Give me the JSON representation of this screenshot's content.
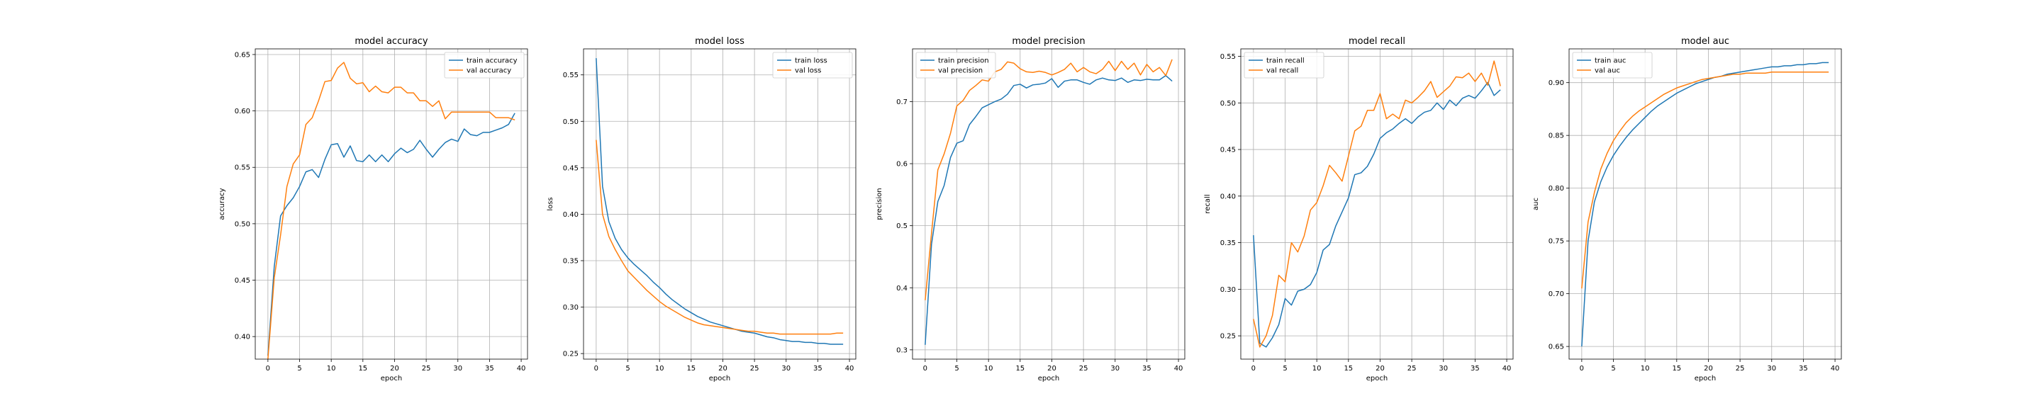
{
  "colors": {
    "train": "#1f77b4",
    "val": "#ff7f0e",
    "grid": "#b0b0b0"
  },
  "chart_data": [
    {
      "type": "line",
      "title": "model accuracy",
      "xlabel": "epoch",
      "ylabel": "accuracy",
      "xlim": [
        -2,
        41
      ],
      "ylim": [
        0.38,
        0.655
      ],
      "xticks": [
        0,
        5,
        10,
        15,
        20,
        25,
        30,
        35,
        40
      ],
      "yticks": [
        0.4,
        0.45,
        0.5,
        0.55,
        0.6,
        0.65
      ],
      "tick_decimals": 2,
      "grid": true,
      "legend": "upper-right",
      "series": [
        {
          "name": "train accuracy",
          "color_key": "train",
          "values": [
            0.383,
            0.462,
            0.507,
            0.516,
            0.523,
            0.533,
            0.546,
            0.548,
            0.541,
            0.557,
            0.57,
            0.571,
            0.559,
            0.569,
            0.556,
            0.555,
            0.561,
            0.555,
            0.561,
            0.555,
            0.562,
            0.567,
            0.563,
            0.566,
            0.574,
            0.566,
            0.559,
            0.566,
            0.572,
            0.575,
            0.573,
            0.584,
            0.579,
            0.578,
            0.581,
            0.581,
            0.583,
            0.585,
            0.588,
            0.598
          ]
        },
        {
          "name": "val accuracy",
          "color_key": "val",
          "values": [
            0.38,
            0.452,
            0.49,
            0.533,
            0.553,
            0.561,
            0.588,
            0.594,
            0.609,
            0.626,
            0.627,
            0.638,
            0.643,
            0.629,
            0.624,
            0.625,
            0.617,
            0.622,
            0.617,
            0.616,
            0.621,
            0.621,
            0.616,
            0.616,
            0.609,
            0.609,
            0.604,
            0.609,
            0.593,
            0.599,
            0.599,
            0.599,
            0.599,
            0.599,
            0.599,
            0.599,
            0.594,
            0.594,
            0.594,
            0.592
          ]
        }
      ]
    },
    {
      "type": "line",
      "title": "model loss",
      "xlabel": "epoch",
      "ylabel": "loss",
      "xlim": [
        -2,
        41
      ],
      "ylim": [
        0.244,
        0.578
      ],
      "xticks": [
        0,
        5,
        10,
        15,
        20,
        25,
        30,
        35,
        40
      ],
      "yticks": [
        0.25,
        0.3,
        0.35,
        0.4,
        0.45,
        0.5,
        0.55
      ],
      "tick_decimals": 2,
      "grid": true,
      "legend": "upper-right",
      "series": [
        {
          "name": "train loss",
          "color_key": "train",
          "values": [
            0.568,
            0.43,
            0.392,
            0.374,
            0.362,
            0.353,
            0.346,
            0.34,
            0.334,
            0.327,
            0.321,
            0.314,
            0.308,
            0.303,
            0.298,
            0.294,
            0.29,
            0.287,
            0.284,
            0.282,
            0.28,
            0.278,
            0.276,
            0.274,
            0.273,
            0.272,
            0.27,
            0.268,
            0.267,
            0.265,
            0.264,
            0.263,
            0.263,
            0.262,
            0.262,
            0.261,
            0.261,
            0.26,
            0.26,
            0.26
          ]
        },
        {
          "name": "val loss",
          "color_key": "val",
          "values": [
            0.48,
            0.4,
            0.376,
            0.362,
            0.35,
            0.339,
            0.332,
            0.325,
            0.318,
            0.312,
            0.306,
            0.301,
            0.297,
            0.293,
            0.289,
            0.286,
            0.283,
            0.281,
            0.28,
            0.279,
            0.278,
            0.277,
            0.276,
            0.275,
            0.274,
            0.274,
            0.273,
            0.272,
            0.272,
            0.271,
            0.271,
            0.271,
            0.271,
            0.271,
            0.271,
            0.271,
            0.271,
            0.271,
            0.272,
            0.272
          ]
        }
      ]
    },
    {
      "type": "line",
      "title": "model precision",
      "xlabel": "epoch",
      "ylabel": "precision",
      "xlim": [
        -2,
        41
      ],
      "ylim": [
        0.285,
        0.785
      ],
      "xticks": [
        0,
        5,
        10,
        15,
        20,
        25,
        30,
        35,
        40
      ],
      "yticks": [
        0.3,
        0.4,
        0.5,
        0.6,
        0.7
      ],
      "tick_decimals": 1,
      "grid": true,
      "legend": "upper-left",
      "series": [
        {
          "name": "train precision",
          "color_key": "train",
          "values": [
            0.308,
            0.47,
            0.539,
            0.565,
            0.61,
            0.633,
            0.637,
            0.663,
            0.676,
            0.69,
            0.695,
            0.7,
            0.704,
            0.712,
            0.726,
            0.728,
            0.722,
            0.727,
            0.728,
            0.73,
            0.737,
            0.723,
            0.733,
            0.735,
            0.735,
            0.731,
            0.728,
            0.735,
            0.738,
            0.735,
            0.734,
            0.738,
            0.731,
            0.735,
            0.734,
            0.736,
            0.735,
            0.735,
            0.742,
            0.733
          ]
        },
        {
          "name": "val precision",
          "color_key": "val",
          "values": [
            0.38,
            0.488,
            0.59,
            0.616,
            0.649,
            0.693,
            0.702,
            0.718,
            0.726,
            0.735,
            0.733,
            0.748,
            0.752,
            0.764,
            0.762,
            0.753,
            0.748,
            0.747,
            0.749,
            0.747,
            0.743,
            0.747,
            0.752,
            0.762,
            0.748,
            0.755,
            0.748,
            0.745,
            0.752,
            0.765,
            0.75,
            0.765,
            0.752,
            0.762,
            0.743,
            0.76,
            0.748,
            0.755,
            0.742,
            0.768
          ]
        }
      ]
    },
    {
      "type": "line",
      "title": "model recall",
      "xlabel": "epoch",
      "ylabel": "recall",
      "xlim": [
        -2,
        41
      ],
      "ylim": [
        0.225,
        0.558
      ],
      "xticks": [
        0,
        5,
        10,
        15,
        20,
        25,
        30,
        35,
        40
      ],
      "yticks": [
        0.25,
        0.3,
        0.35,
        0.4,
        0.45,
        0.5,
        0.55
      ],
      "tick_decimals": 2,
      "grid": true,
      "legend": "upper-left",
      "series": [
        {
          "name": "train recall",
          "color_key": "train",
          "values": [
            0.358,
            0.242,
            0.238,
            0.248,
            0.262,
            0.29,
            0.283,
            0.298,
            0.3,
            0.305,
            0.318,
            0.342,
            0.348,
            0.368,
            0.383,
            0.398,
            0.423,
            0.425,
            0.432,
            0.445,
            0.462,
            0.468,
            0.472,
            0.478,
            0.483,
            0.478,
            0.485,
            0.49,
            0.492,
            0.5,
            0.493,
            0.503,
            0.497,
            0.505,
            0.508,
            0.505,
            0.513,
            0.522,
            0.508,
            0.514
          ]
        },
        {
          "name": "val recall",
          "color_key": "val",
          "values": [
            0.268,
            0.238,
            0.25,
            0.272,
            0.315,
            0.308,
            0.35,
            0.34,
            0.357,
            0.385,
            0.393,
            0.411,
            0.433,
            0.425,
            0.416,
            0.443,
            0.47,
            0.475,
            0.492,
            0.492,
            0.51,
            0.483,
            0.488,
            0.483,
            0.503,
            0.5,
            0.506,
            0.513,
            0.523,
            0.506,
            0.512,
            0.518,
            0.528,
            0.527,
            0.532,
            0.523,
            0.532,
            0.519,
            0.545,
            0.518
          ]
        }
      ]
    },
    {
      "type": "line",
      "title": "model auc",
      "xlabel": "epoch",
      "ylabel": "auc",
      "xlim": [
        -2,
        41
      ],
      "ylim": [
        0.638,
        0.932
      ],
      "xticks": [
        0,
        5,
        10,
        15,
        20,
        25,
        30,
        35,
        40
      ],
      "yticks": [
        0.65,
        0.7,
        0.75,
        0.8,
        0.85,
        0.9
      ],
      "tick_decimals": 2,
      "grid": true,
      "legend": "upper-left",
      "series": [
        {
          "name": "train auc",
          "color_key": "train",
          "values": [
            0.65,
            0.75,
            0.787,
            0.806,
            0.82,
            0.831,
            0.84,
            0.848,
            0.855,
            0.861,
            0.867,
            0.873,
            0.878,
            0.882,
            0.886,
            0.89,
            0.893,
            0.896,
            0.899,
            0.901,
            0.903,
            0.905,
            0.906,
            0.908,
            0.909,
            0.91,
            0.911,
            0.912,
            0.913,
            0.914,
            0.915,
            0.915,
            0.916,
            0.916,
            0.917,
            0.917,
            0.918,
            0.918,
            0.919,
            0.919
          ]
        },
        {
          "name": "val auc",
          "color_key": "val",
          "values": [
            0.705,
            0.768,
            0.796,
            0.818,
            0.833,
            0.845,
            0.854,
            0.862,
            0.868,
            0.873,
            0.877,
            0.881,
            0.885,
            0.889,
            0.892,
            0.895,
            0.897,
            0.899,
            0.901,
            0.903,
            0.904,
            0.905,
            0.906,
            0.907,
            0.908,
            0.908,
            0.909,
            0.909,
            0.909,
            0.909,
            0.91,
            0.91,
            0.91,
            0.91,
            0.91,
            0.91,
            0.91,
            0.91,
            0.91,
            0.91
          ]
        }
      ]
    }
  ]
}
